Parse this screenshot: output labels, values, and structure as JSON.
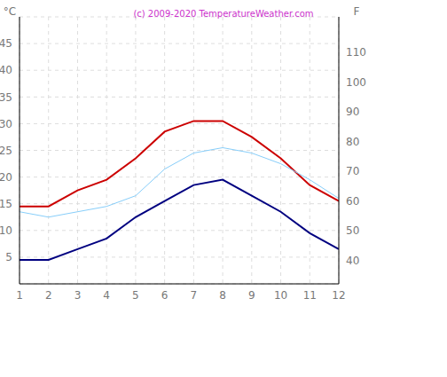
{
  "chart_data": {
    "type": "line",
    "title": "(c) 2009-2020 TemperatureWeather.com",
    "x": [
      1,
      2,
      3,
      4,
      5,
      6,
      7,
      8,
      9,
      10,
      11,
      12
    ],
    "xlim": [
      1,
      12
    ],
    "xticks": [
      1,
      2,
      3,
      4,
      5,
      6,
      7,
      8,
      9,
      10,
      11,
      12
    ],
    "y_label": "°C",
    "ylim": [
      0,
      50
    ],
    "yticks": [
      5,
      10,
      15,
      20,
      25,
      30,
      35,
      40,
      45
    ],
    "y2_label": "F",
    "y2lim": [
      32,
      122
    ],
    "y2ticks": [
      40,
      50,
      60,
      70,
      80,
      90,
      100,
      110
    ],
    "grid": true,
    "series": [
      {
        "color": "#cc0000",
        "values": [
          14.5,
          14.5,
          17.5,
          19.5,
          23.5,
          28.5,
          30.5,
          30.5,
          27.5,
          23.5,
          18.5,
          15.5
        ]
      },
      {
        "color": "#87cefa",
        "values": [
          13.5,
          12.5,
          13.5,
          14.5,
          16.5,
          21.5,
          24.5,
          25.5,
          24.5,
          22.5,
          19.5,
          16
        ]
      },
      {
        "color": "#000080",
        "values": [
          4.5,
          4.5,
          6.5,
          8.5,
          12.5,
          15.5,
          18.5,
          19.5,
          16.5,
          13.5,
          9.5,
          6.5
        ]
      }
    ]
  }
}
